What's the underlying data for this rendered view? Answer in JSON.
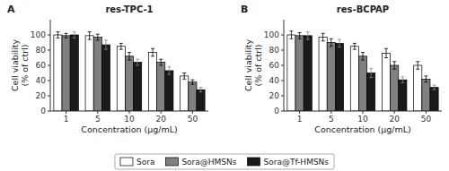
{
  "chart_data": [
    {
      "type": "bar",
      "title": "res-TPC-1",
      "annotations": [
        "A"
      ],
      "xlabel": "Concentration (μg/mL)",
      "ylabel": "Cell viability\n(% of ctrl)",
      "categories": [
        "1",
        "5",
        "10",
        "20",
        "50"
      ],
      "series": [
        {
          "name": "Sora",
          "color": "#ffffff",
          "values": [
            100,
            99,
            85,
            77,
            46
          ],
          "errors": [
            4,
            5,
            4,
            5,
            4
          ]
        },
        {
          "name": "Sora@HMSNs",
          "color": "#808080",
          "values": [
            99,
            97,
            72,
            64,
            38
          ],
          "errors": [
            3,
            4,
            5,
            4,
            3
          ]
        },
        {
          "name": "Sora@Tf-HMSNs",
          "color": "#1a1a1a",
          "values": [
            100,
            87,
            64,
            53,
            28
          ],
          "errors": [
            4,
            6,
            4,
            5,
            3
          ]
        }
      ],
      "ylim": [
        0,
        120
      ],
      "yticks": [
        0,
        20,
        40,
        60,
        80,
        100
      ],
      "grid": false,
      "legend": "bottom"
    },
    {
      "type": "bar",
      "title": "res-BCPAP",
      "annotations": [
        "B"
      ],
      "xlabel": "Concentration (μg/mL)",
      "ylabel": "Cell viability\n(% of ctrl)",
      "categories": [
        "1",
        "5",
        "10",
        "20",
        "50"
      ],
      "series": [
        {
          "name": "Sora",
          "color": "#ffffff",
          "values": [
            100,
            97,
            85,
            76,
            60
          ],
          "errors": [
            5,
            5,
            4,
            6,
            5
          ]
        },
        {
          "name": "Sora@HMSNs",
          "color": "#808080",
          "values": [
            99,
            90,
            72,
            60,
            42
          ],
          "errors": [
            4,
            5,
            5,
            5,
            4
          ]
        },
        {
          "name": "Sora@Tf-HMSNs",
          "color": "#1a1a1a",
          "values": [
            99,
            89,
            50,
            41,
            31
          ],
          "errors": [
            5,
            5,
            6,
            4,
            3
          ]
        }
      ],
      "ylim": [
        0,
        120
      ],
      "yticks": [
        0,
        20,
        40,
        60,
        80,
        100
      ],
      "grid": false
    }
  ]
}
